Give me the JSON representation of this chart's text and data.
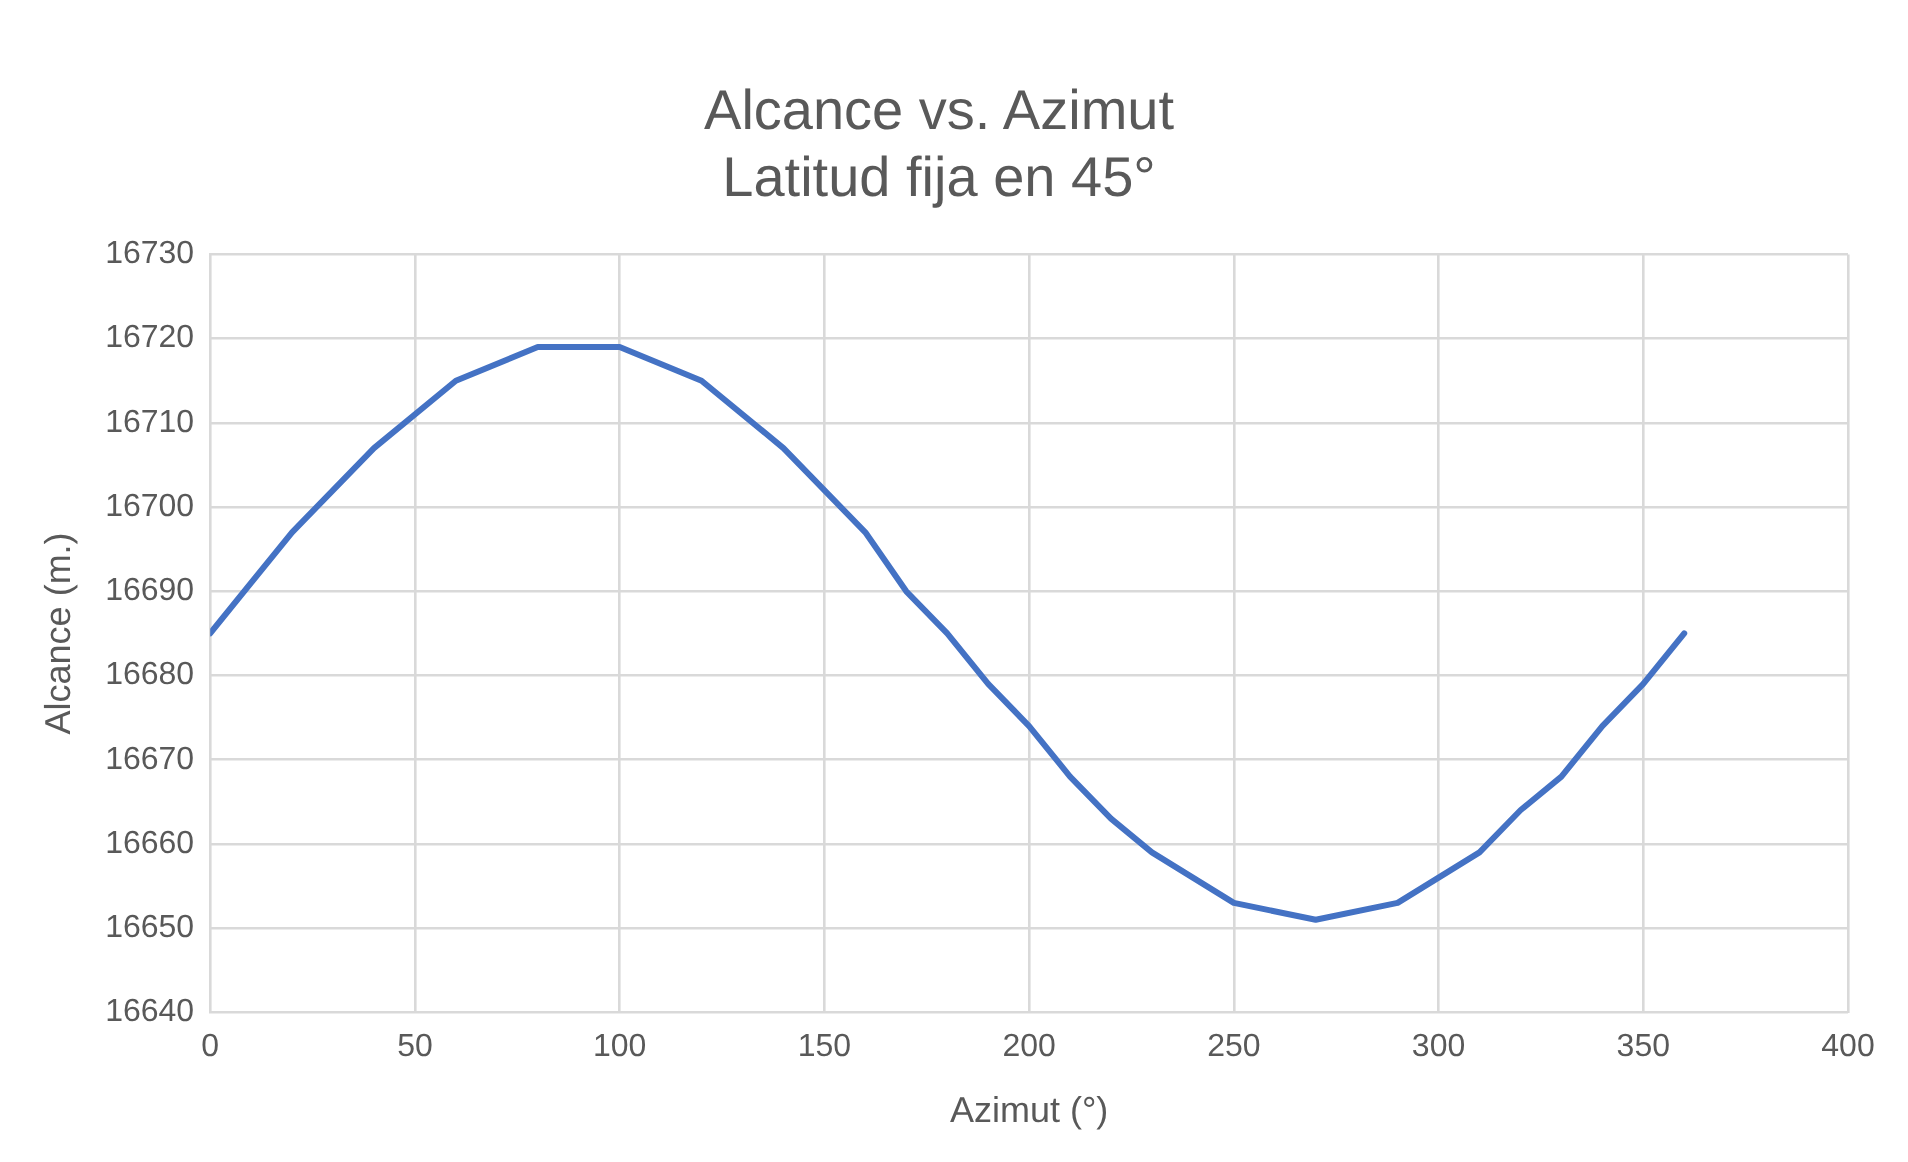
{
  "chart_data": {
    "type": "line",
    "title": [
      "Alcance vs. Azimut",
      "Latitud fija en 45°"
    ],
    "xlabel": "Azimut (°)",
    "ylabel": "Alcance (m.)",
    "series": [
      {
        "color": "#4472c4",
        "x": [
          0,
          20,
          40,
          60,
          80,
          100,
          120,
          140,
          160,
          170,
          180,
          190,
          200,
          210,
          220,
          230,
          250,
          270,
          290,
          310,
          320,
          330,
          340,
          350,
          360
        ],
        "values": [
          16685,
          16697,
          16707,
          16715,
          16719,
          16719,
          16715,
          16707,
          16697,
          16690,
          16685,
          16679,
          16674,
          16668,
          16663,
          16659,
          16653,
          16651,
          16653,
          16659,
          16664,
          16668,
          16674,
          16679,
          16685
        ]
      }
    ],
    "xlim": [
      0,
      400
    ],
    "xticks": [
      0,
      50,
      100,
      150,
      200,
      250,
      300,
      350,
      400
    ],
    "ylim": [
      16640,
      16730
    ],
    "yticks": [
      16640,
      16650,
      16660,
      16670,
      16680,
      16690,
      16700,
      16710,
      16720,
      16730
    ],
    "grid": true,
    "legend": false,
    "marker": "none",
    "line_style": "solid"
  }
}
